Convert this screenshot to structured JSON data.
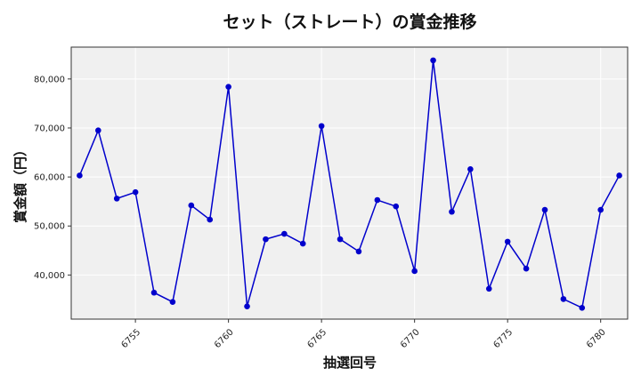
{
  "chart_data": {
    "type": "line",
    "title": "セット（ストレート）の賞金推移",
    "xlabel": "抽選回号",
    "ylabel": "賞金額（円）",
    "xlim": [
      6751.55,
      6781.45
    ],
    "ylim": [
      31000,
      86500
    ],
    "x_ticks": [
      6755,
      6760,
      6765,
      6770,
      6775,
      6780
    ],
    "y_ticks": [
      40000,
      50000,
      60000,
      70000,
      80000
    ],
    "y_tick_labels": [
      "40,000",
      "50,000",
      "60,000",
      "70,000",
      "80,000"
    ],
    "grid": true,
    "plot_background": "#f0f0f0",
    "series": [
      {
        "color": "#0000cc",
        "x": [
          6752,
          6753,
          6754,
          6755,
          6756,
          6757,
          6758,
          6759,
          6760,
          6761,
          6762,
          6763,
          6764,
          6765,
          6766,
          6767,
          6768,
          6769,
          6770,
          6771,
          6772,
          6773,
          6774,
          6775,
          6776,
          6777,
          6778,
          6779,
          6780,
          6781
        ],
        "values": [
          60300,
          69500,
          55600,
          56900,
          36400,
          34500,
          54200,
          51300,
          78400,
          33600,
          47300,
          48400,
          46400,
          70400,
          47300,
          44800,
          55300,
          54000,
          40800,
          83800,
          52900,
          61600,
          37200,
          46800,
          41300,
          53300,
          35100,
          33300,
          53300,
          60300
        ]
      }
    ]
  }
}
